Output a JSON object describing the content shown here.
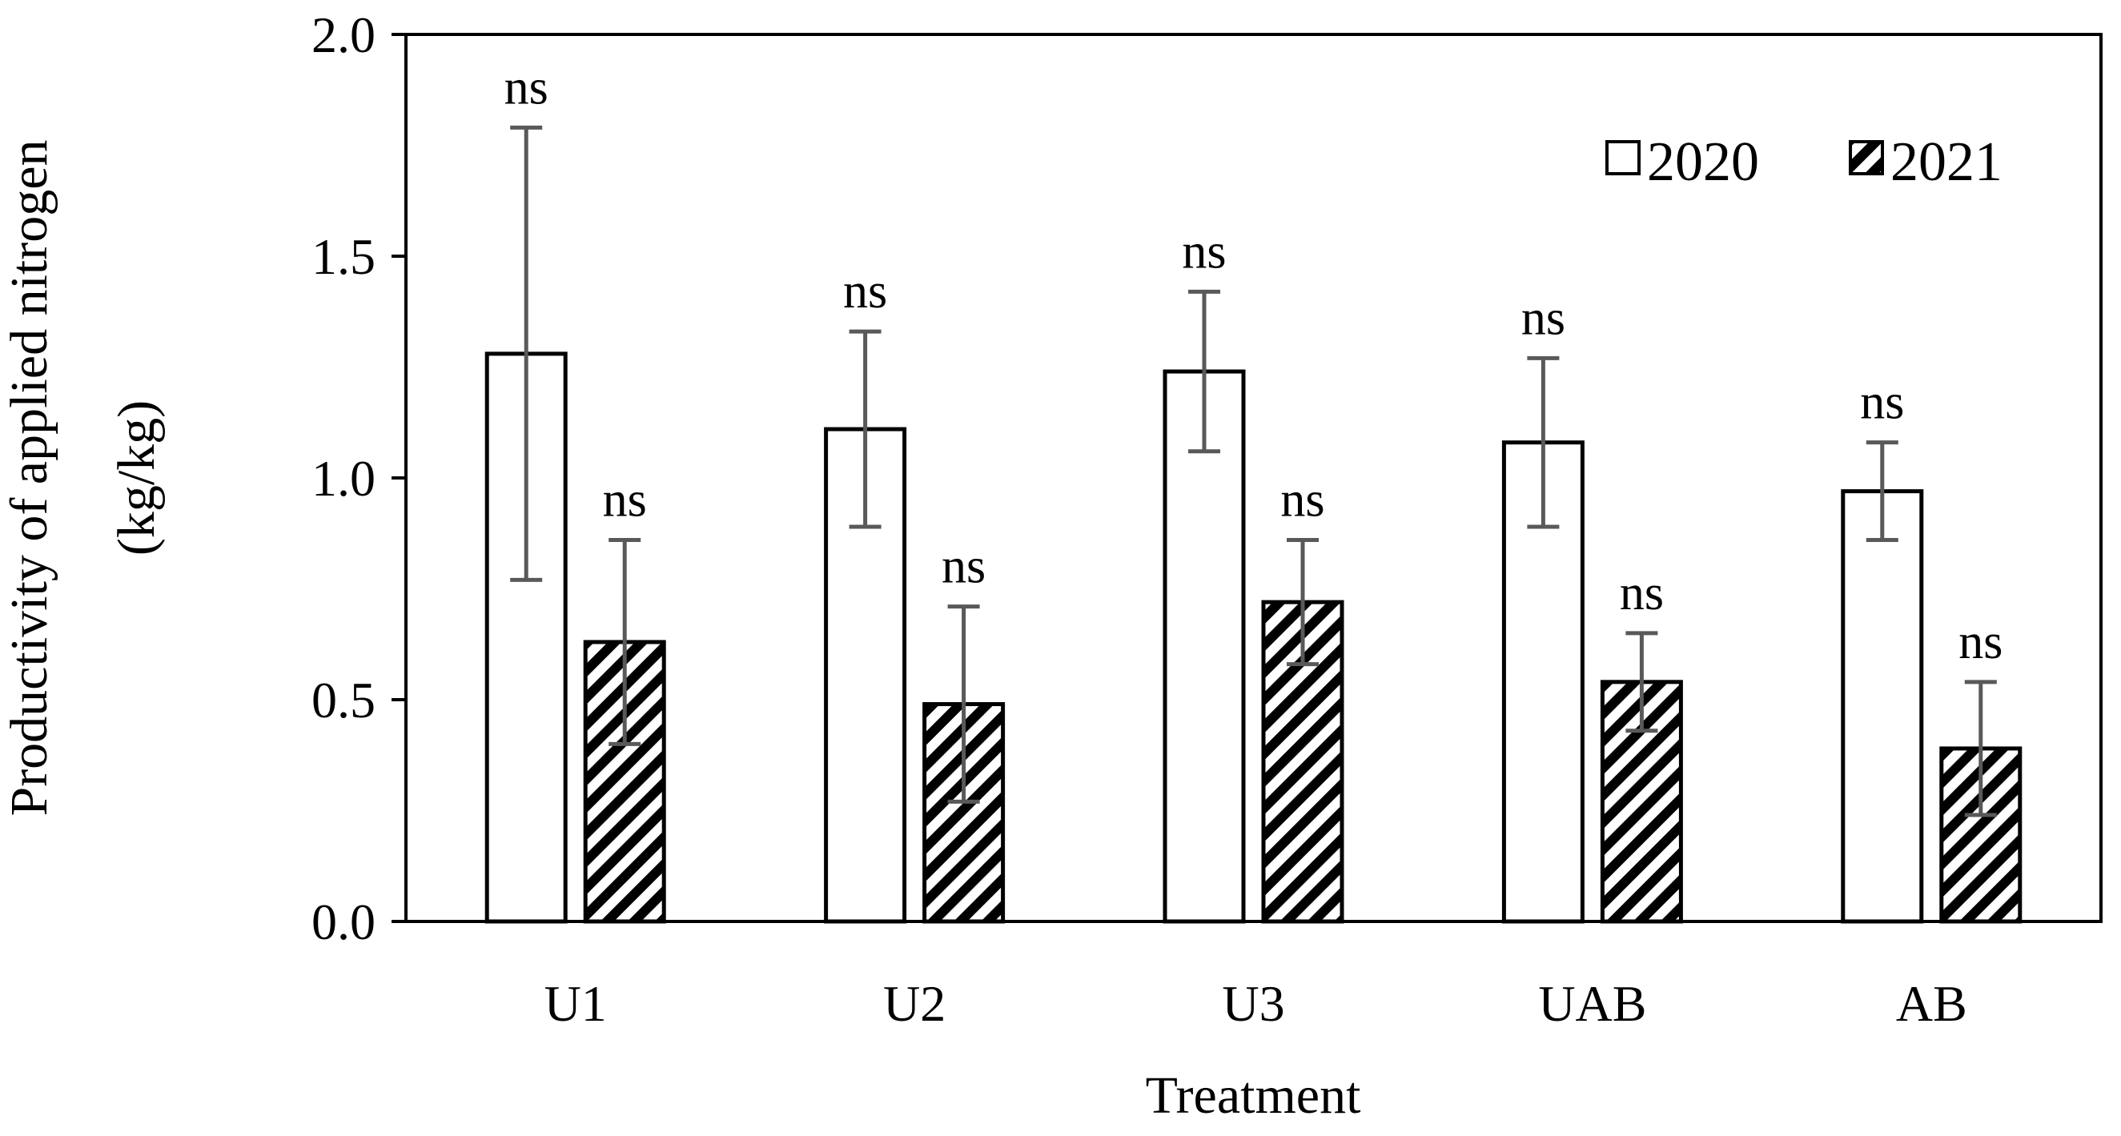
{
  "chart_data": {
    "type": "bar",
    "title": "",
    "xlabel": "Treatment",
    "ylabel_lines": [
      "Productivity of applied nitrogen",
      "(kg/kg)"
    ],
    "ylim": [
      0,
      2.0
    ],
    "ytick_values": [
      0,
      0.5,
      1.0,
      1.5,
      2.0
    ],
    "ytick_labels": [
      "0.0",
      "0.5",
      "1.0",
      "1.5",
      "2.0"
    ],
    "categories": [
      "U1",
      "U2",
      "U3",
      "UAB",
      "AB"
    ],
    "series": [
      {
        "name": "2020",
        "pattern": "open",
        "values": [
          1.28,
          1.11,
          1.24,
          1.08,
          0.97
        ],
        "errors": [
          0.51,
          0.22,
          0.18,
          0.19,
          0.11
        ],
        "significance": [
          "ns",
          "ns",
          "ns",
          "ns",
          "ns"
        ]
      },
      {
        "name": "2021",
        "pattern": "diagonal-hatch",
        "values": [
          0.63,
          0.49,
          0.72,
          0.54,
          0.39
        ],
        "errors": [
          0.23,
          0.22,
          0.14,
          0.11,
          0.15
        ],
        "significance": [
          "ns",
          "ns",
          "ns",
          "ns",
          "ns"
        ]
      }
    ],
    "legend": {
      "position": "top-right",
      "entries": [
        "2020",
        "2021"
      ]
    },
    "grid": false
  },
  "colors": {
    "bar_stroke": "#000000",
    "bar_fill_open": "#ffffff",
    "hatch": "#000000",
    "error_bar": "#595959",
    "axis": "#000000"
  }
}
